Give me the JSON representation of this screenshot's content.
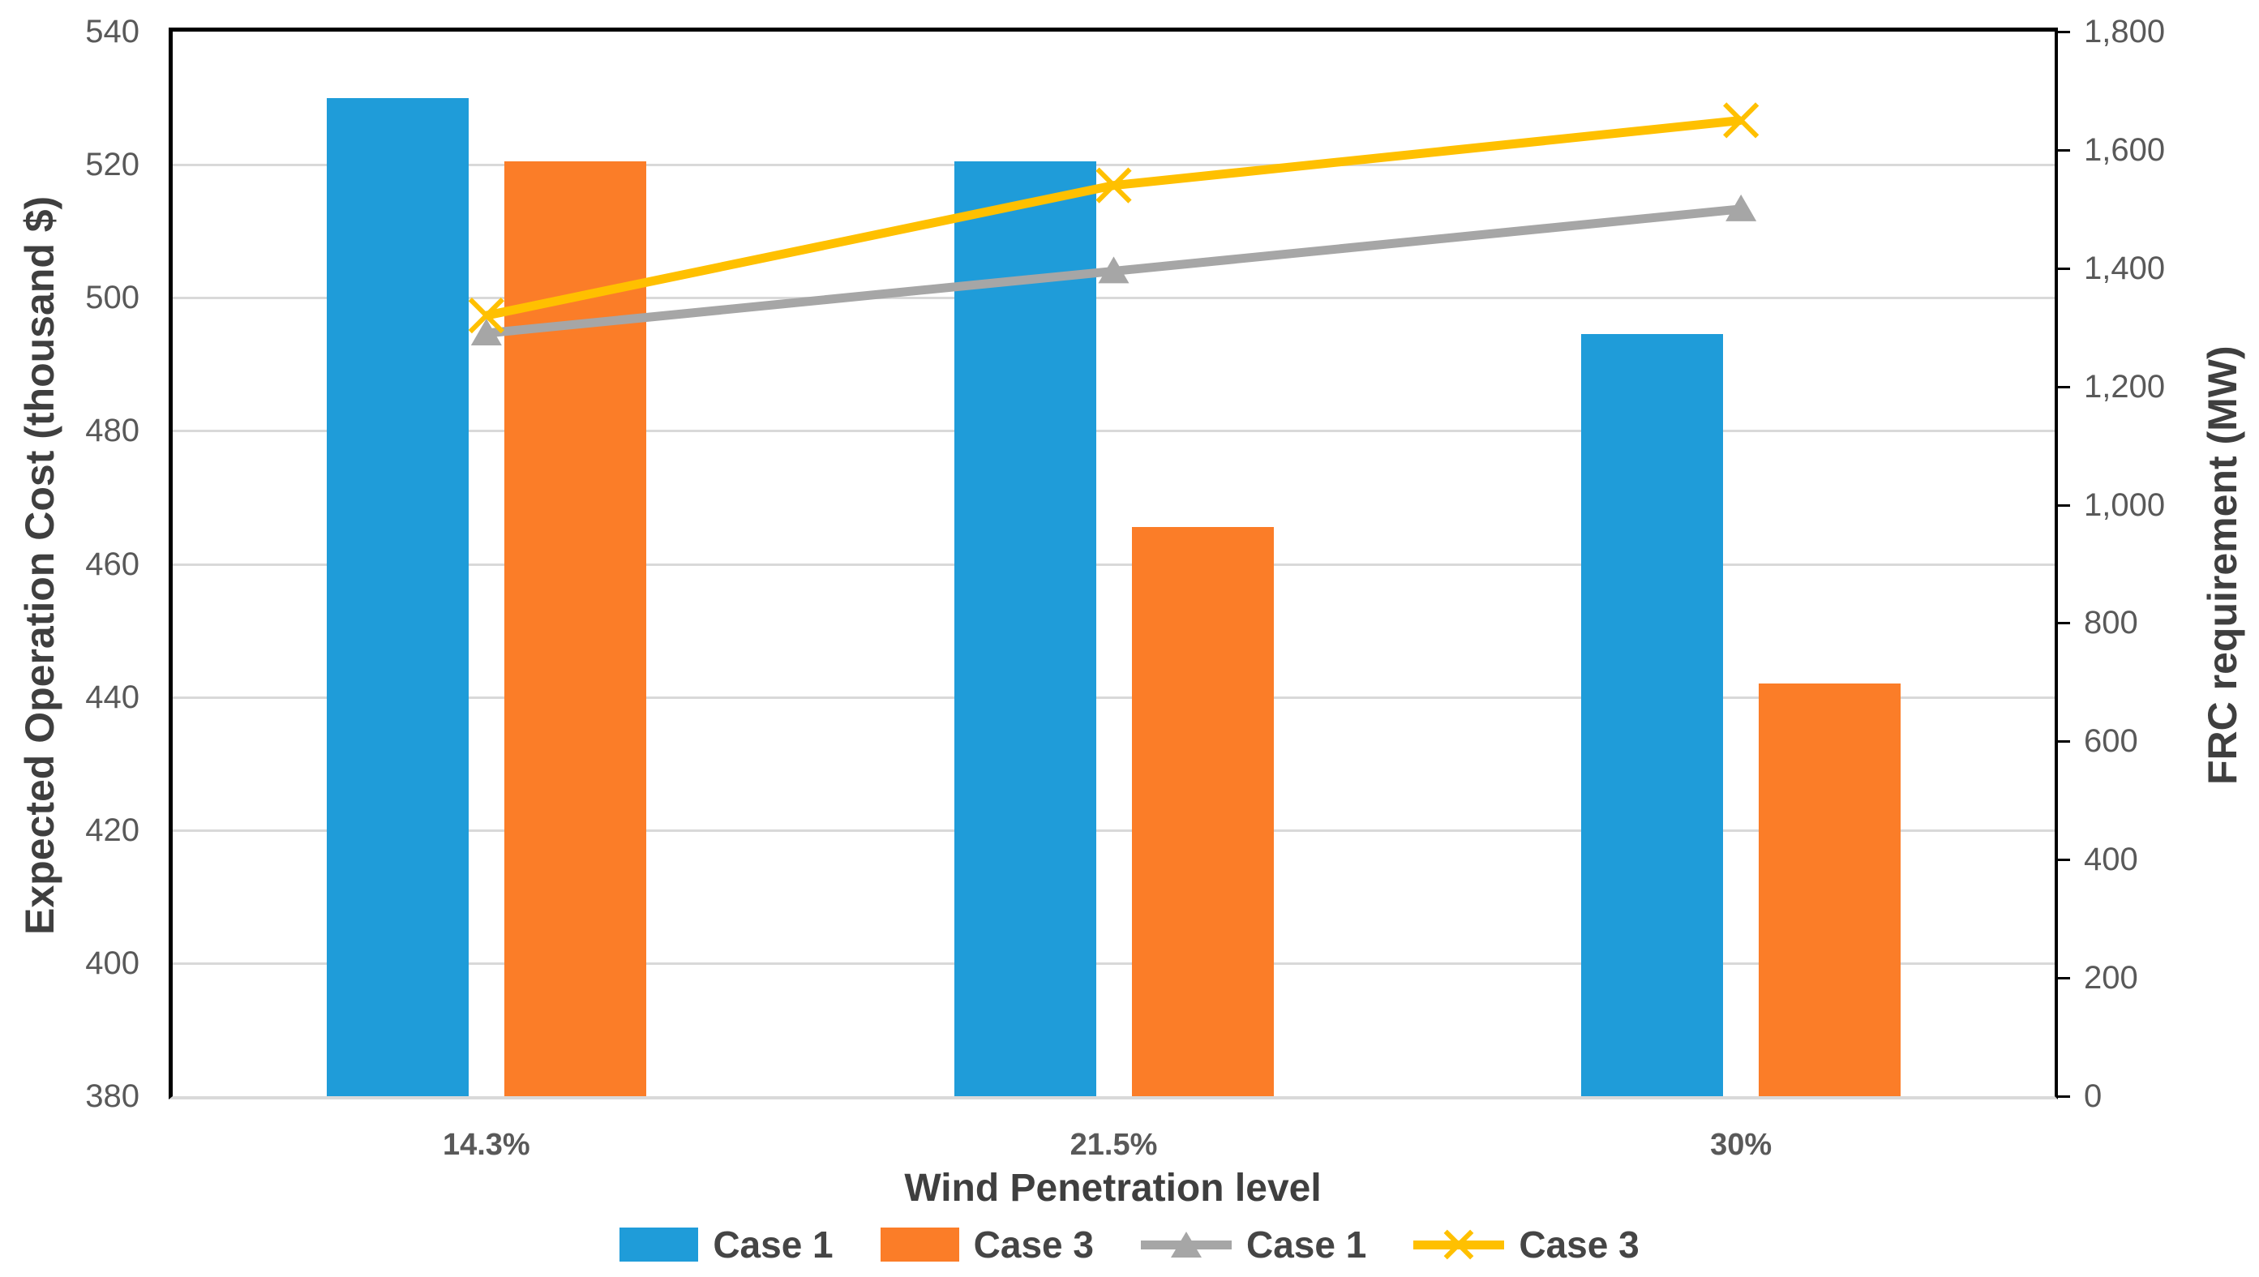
{
  "chart_data": {
    "type": "combo-bar-line",
    "categories": [
      "14.3%",
      "21.5%",
      "30%"
    ],
    "x_axis": {
      "title": "Wind Penetration level"
    },
    "left_axis": {
      "title": "Expected Operation Cost (thousand $)",
      "min": 380,
      "max": 540,
      "step": 20,
      "tick_labels": [
        "380",
        "400",
        "420",
        "440",
        "460",
        "480",
        "500",
        "520",
        "540"
      ]
    },
    "right_axis": {
      "title": "FRC requirement (MW)",
      "min": 0,
      "max": 1800,
      "step": 200,
      "tick_labels": [
        "0",
        "200",
        "400",
        "600",
        "800",
        "1,000",
        "1,200",
        "1,400",
        "1,600",
        "1,800"
      ]
    },
    "bar_series": [
      {
        "name": "Case 1",
        "color": "#1F9CD9",
        "axis": "left",
        "values": [
          530,
          520.5,
          494.5
        ]
      },
      {
        "name": "Case 3",
        "color": "#FB7D28",
        "axis": "left",
        "values": [
          520.5,
          465.5,
          442
        ]
      }
    ],
    "line_series": [
      {
        "name": "Case 1",
        "color": "#A6A6A6",
        "marker": "triangle",
        "axis": "right",
        "values": [
          1290,
          1395,
          1500
        ]
      },
      {
        "name": "Case 3",
        "color": "#FFC000",
        "marker": "x",
        "axis": "right",
        "values": [
          1320,
          1540,
          1650
        ]
      }
    ],
    "grid_color": "#D9D9D9",
    "legend": {
      "items": [
        {
          "label": "Case 1",
          "swatch": "bar",
          "color": "#1F9CD9"
        },
        {
          "label": "Case 3",
          "swatch": "bar",
          "color": "#FB7D28"
        },
        {
          "label": "Case 1",
          "swatch": "line-triangle",
          "color": "#A6A6A6"
        },
        {
          "label": "Case 3",
          "swatch": "line-x",
          "color": "#FFC000"
        }
      ]
    }
  }
}
